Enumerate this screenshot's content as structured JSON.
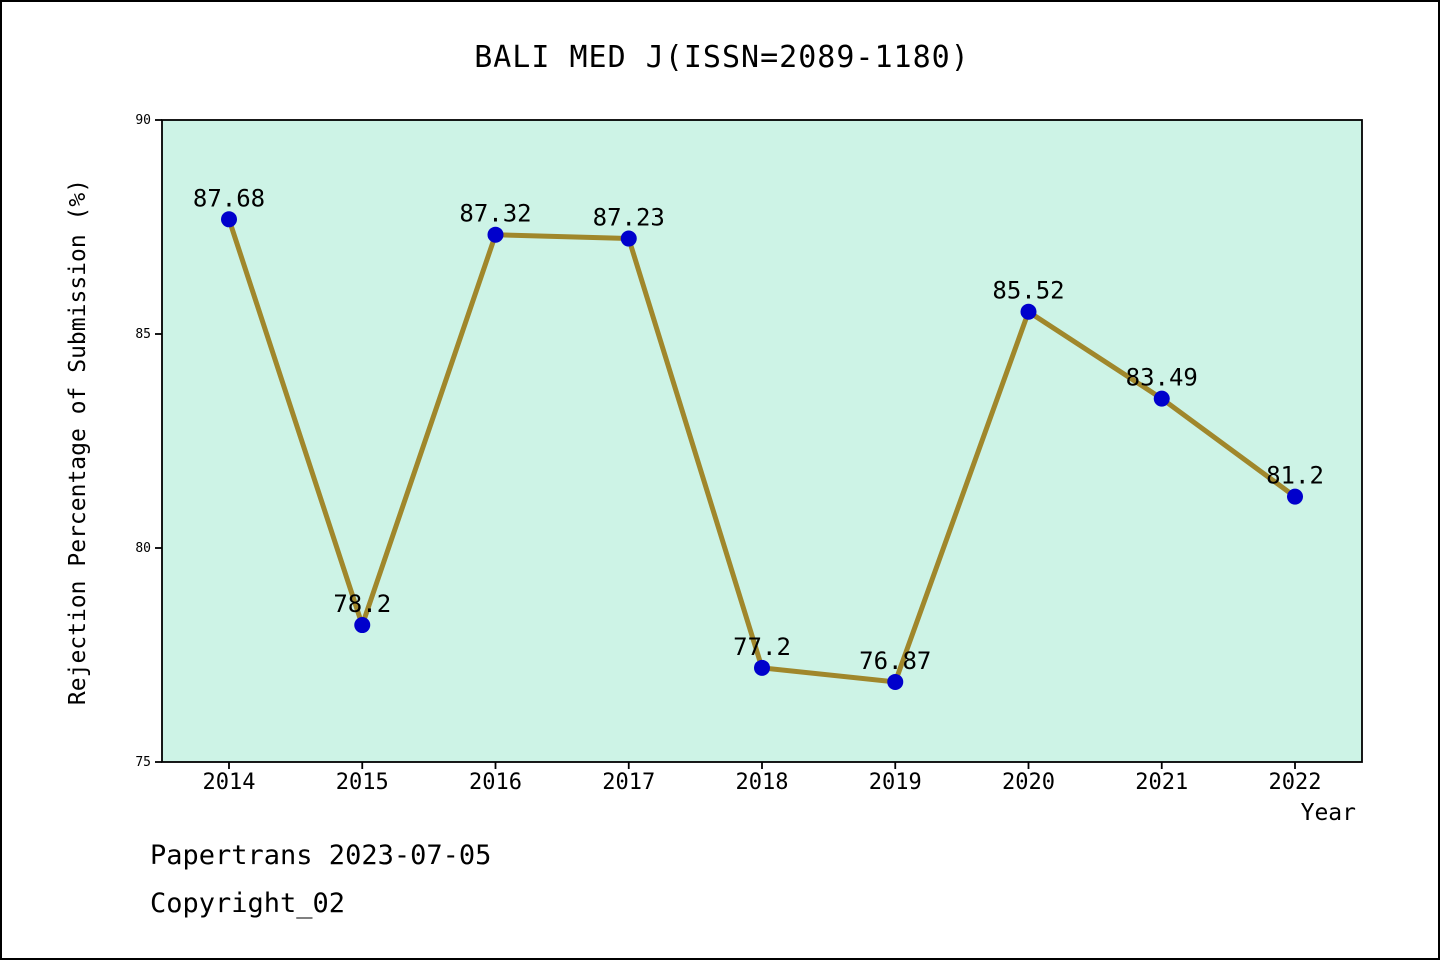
{
  "chart_data": {
    "type": "line",
    "title": "BALI MED J(ISSN=2089-1180)",
    "xlabel": "Year",
    "ylabel": "Rejection Percentage of Submission (%)",
    "x": [
      2014,
      2015,
      2016,
      2017,
      2018,
      2019,
      2020,
      2021,
      2022
    ],
    "series": [
      {
        "name": "Rejection Percentage of Submission",
        "values": [
          87.68,
          78.2,
          87.32,
          87.23,
          77.2,
          76.87,
          85.52,
          83.49,
          81.2
        ]
      }
    ],
    "point_labels": [
      "87.68",
      "78.2",
      "87.32",
      "87.23",
      "77.2",
      "76.87",
      "85.52",
      "83.49",
      "81.2"
    ],
    "ylim": [
      75,
      90
    ],
    "yticks": [
      75,
      80,
      85,
      90
    ],
    "grid": false,
    "legend": "none",
    "colors": {
      "line": "#a0872b",
      "marker": "#0000cc",
      "plot_bg": "#cdf3e6",
      "axis": "#000000"
    }
  },
  "footer": {
    "line1": "Papertrans 2023-07-05",
    "line2": "Copyright_02"
  }
}
